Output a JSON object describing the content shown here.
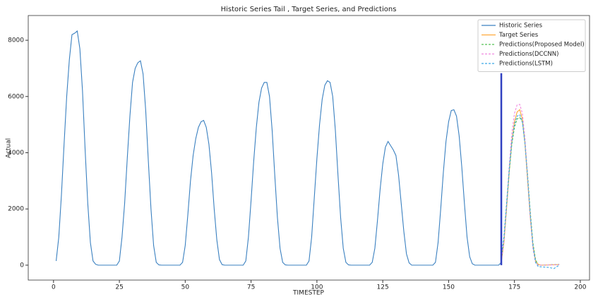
{
  "chart_data": {
    "type": "line",
    "title": "Historic Series Tail , Target Series, and Predictions",
    "xlabel": "TIMESTEP",
    "ylabel": "Actual",
    "xlim": [
      -9.6,
      203.5
    ],
    "ylim": [
      -530,
      8880
    ],
    "xticks": [
      0,
      25,
      50,
      75,
      100,
      125,
      150,
      175,
      200
    ],
    "yticks": [
      0,
      2000,
      4000,
      6000,
      8000
    ],
    "grid": false,
    "legend": "upper right",
    "vline": {
      "x": 170,
      "y": [
        0,
        6830
      ],
      "color": "#3040c0"
    },
    "series": [
      {
        "name": "Historic Series",
        "color": "#3a80c0",
        "dash": false,
        "x": [
          1,
          2,
          3,
          4,
          5,
          6,
          7,
          8,
          9,
          10,
          11,
          12,
          13,
          14,
          15,
          16,
          17,
          24,
          25,
          26,
          27,
          28,
          29,
          30,
          31,
          32,
          33,
          34,
          35,
          36,
          37,
          38,
          39,
          40,
          41,
          48,
          49,
          50,
          51,
          52,
          53,
          54,
          55,
          56,
          57,
          58,
          59,
          60,
          61,
          62,
          63,
          64,
          65,
          72,
          73,
          74,
          75,
          76,
          77,
          78,
          79,
          80,
          81,
          82,
          83,
          84,
          85,
          86,
          87,
          88,
          89,
          96,
          97,
          98,
          99,
          100,
          101,
          102,
          103,
          104,
          105,
          106,
          107,
          108,
          109,
          110,
          111,
          112,
          113,
          120,
          121,
          122,
          123,
          124,
          125,
          126,
          127,
          128,
          129,
          130,
          131,
          132,
          133,
          134,
          135,
          136,
          144,
          145,
          146,
          147,
          148,
          149,
          150,
          151,
          152,
          153,
          154,
          155,
          156,
          157,
          158,
          159,
          160,
          169,
          170
        ],
        "values": [
          150,
          1000,
          2500,
          4300,
          6000,
          7300,
          8200,
          8250,
          8330,
          7700,
          6200,
          4100,
          2200,
          800,
          150,
          30,
          0,
          0,
          150,
          1000,
          2200,
          3800,
          5300,
          6500,
          7000,
          7200,
          7270,
          6800,
          5500,
          3700,
          2000,
          700,
          100,
          10,
          0,
          0,
          100,
          700,
          1800,
          3000,
          3900,
          4500,
          4900,
          5100,
          5150,
          4900,
          4300,
          3300,
          2000,
          900,
          200,
          20,
          0,
          0,
          150,
          1000,
          2300,
          3700,
          4900,
          5800,
          6300,
          6500,
          6500,
          6000,
          4800,
          3200,
          1700,
          600,
          100,
          10,
          0,
          0,
          150,
          1000,
          2400,
          3800,
          5000,
          5900,
          6400,
          6560,
          6500,
          6000,
          4800,
          3200,
          1700,
          600,
          100,
          10,
          0,
          0,
          100,
          600,
          1600,
          2700,
          3600,
          4200,
          4400,
          4250,
          4100,
          3900,
          3200,
          2200,
          1200,
          400,
          80,
          0,
          0,
          100,
          800,
          2000,
          3300,
          4400,
          5100,
          5500,
          5530,
          5300,
          4600,
          3500,
          2200,
          1000,
          300,
          50,
          0,
          0,
          100
        ]
      },
      {
        "name": "Target Series",
        "color": "#ffa93a",
        "dash": false,
        "x": [
          170,
          171,
          172,
          173,
          174,
          175,
          176,
          177,
          178,
          179,
          180,
          181,
          182,
          183,
          184,
          185,
          192
        ],
        "values": [
          100,
          800,
          2000,
          3300,
          4400,
          5100,
          5450,
          5530,
          5200,
          4300,
          3000,
          1700,
          700,
          150,
          30,
          0,
          20
        ]
      },
      {
        "name": "Predictions(Proposed Model)",
        "color": "#55c055",
        "dash": true,
        "x": [
          170,
          171,
          172,
          173,
          174,
          175,
          176,
          177,
          178,
          179,
          180,
          181,
          182,
          183,
          184,
          186,
          192
        ],
        "values": [
          200,
          900,
          2100,
          3300,
          4300,
          4900,
          5200,
          5250,
          5100,
          4400,
          3200,
          1900,
          800,
          200,
          0,
          0,
          30
        ]
      },
      {
        "name": "Predictions(DCCNN)",
        "color": "#f08ae0",
        "dash": true,
        "x": [
          170,
          171,
          172,
          173,
          174,
          175,
          176,
          177,
          178,
          179,
          180,
          181,
          182,
          183,
          184,
          186,
          192
        ],
        "values": [
          150,
          850,
          2100,
          3500,
          4700,
          5400,
          5700,
          5720,
          5400,
          4500,
          3100,
          1700,
          600,
          100,
          0,
          0,
          20
        ]
      },
      {
        "name": "Predictions(LSTM)",
        "color": "#3aa8e8",
        "dash": true,
        "x": [
          170,
          171,
          172,
          173,
          174,
          175,
          176,
          177,
          178,
          179,
          180,
          181,
          182,
          183,
          184,
          188,
          190,
          192
        ],
        "values": [
          300,
          1000,
          2200,
          3400,
          4400,
          5000,
          5300,
          5350,
          5100,
          4300,
          3100,
          1800,
          700,
          100,
          -50,
          -80,
          -120,
          0
        ]
      }
    ]
  }
}
